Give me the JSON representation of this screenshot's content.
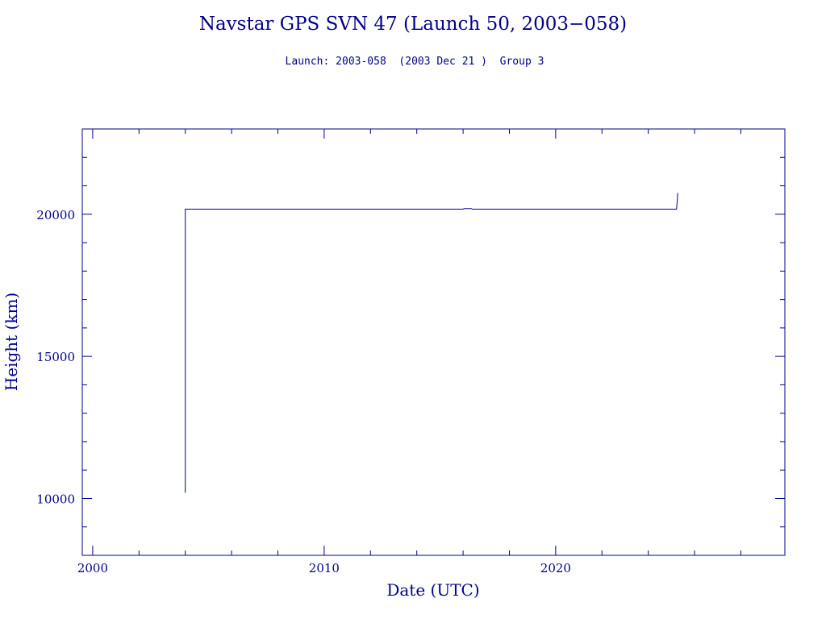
{
  "chart_data": {
    "type": "line",
    "title": "Navstar GPS SVN 47 (Launch 50, 2003−058)",
    "subtitle": "Launch: 2003-058  (2003 Dec 21 )  Group 3",
    "xlabel": "Date (UTC)",
    "ylabel": "Height (km)",
    "xlim": [
      1999.55,
      2029.9
    ],
    "ylim": [
      8000,
      23000
    ],
    "xticks": [
      2000,
      2010,
      2020
    ],
    "yticks": [
      10000,
      15000,
      20000
    ],
    "x_minor_step": 2,
    "y_minor_step": 1000,
    "grid": false,
    "series": [
      {
        "x": [
          2004.0,
          2004.0,
          2004.02,
          2016.0,
          2016.05,
          2016.35,
          2016.4,
          2025.2,
          2025.22,
          2025.25,
          2025.27
        ],
        "y": [
          10200,
          20180,
          20180,
          20180,
          20200,
          20200,
          20180,
          20180,
          20180,
          20450,
          20750
        ]
      }
    ],
    "colors": {
      "line": "#00008b",
      "text": "#00008b"
    }
  }
}
